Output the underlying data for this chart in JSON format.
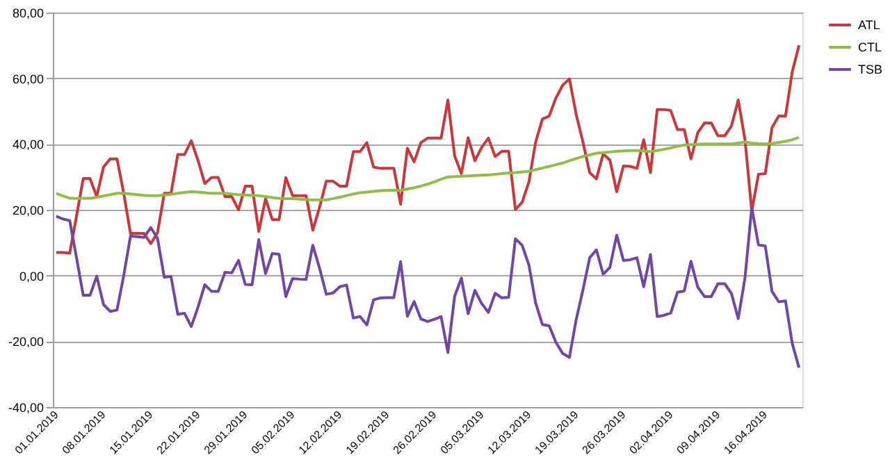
{
  "chart_data": {
    "type": "line",
    "categories": [
      "01.01.2019",
      null,
      null,
      null,
      null,
      null,
      null,
      "08.01.2019",
      null,
      null,
      null,
      null,
      null,
      null,
      "15.01.2019",
      null,
      null,
      null,
      null,
      null,
      null,
      "22.01.2019",
      null,
      null,
      null,
      null,
      null,
      null,
      "29.01.2019",
      null,
      null,
      null,
      null,
      null,
      null,
      "05.02.2019",
      null,
      null,
      null,
      null,
      null,
      null,
      "12.02.2019",
      null,
      null,
      null,
      null,
      null,
      null,
      "19.02.2019",
      null,
      null,
      null,
      null,
      null,
      null,
      "26.02.2019",
      null,
      null,
      null,
      null,
      null,
      null,
      "05.03.2019",
      null,
      null,
      null,
      null,
      null,
      null,
      "12.03.2019",
      null,
      null,
      null,
      null,
      null,
      null,
      "19.03.2019",
      null,
      null,
      null,
      null,
      null,
      null,
      "26.03.2019",
      null,
      null,
      null,
      null,
      null,
      null,
      "02.04.2019",
      null,
      null,
      null,
      null,
      null,
      null,
      "09.04.2019",
      null,
      null,
      null,
      null,
      null,
      null,
      "16.04.2019",
      null,
      null,
      null,
      null,
      null
    ],
    "series": [
      {
        "name": "ATL",
        "color": "#c9393b",
        "values": [
          7,
          7,
          6.8,
          18,
          29.5,
          29.5,
          24,
          33,
          35.5,
          35.5,
          25,
          12.8,
          12.8,
          12.8,
          9.7,
          13,
          25,
          25,
          36.8,
          36.8,
          41,
          35,
          28,
          29.8,
          29.8,
          24,
          24,
          20,
          27.2,
          27.2,
          13.4,
          23.4,
          17,
          17,
          29.8,
          24.3,
          24.3,
          24.3,
          13.8,
          20.8,
          28.7,
          28.7,
          27.2,
          27.2,
          37.7,
          37.7,
          40.4,
          33,
          32.6,
          32.6,
          32.6,
          21.7,
          38.7,
          34.6,
          40.4,
          41.8,
          41.8,
          41.8,
          53.4,
          36.4,
          31,
          41.9,
          34.9,
          39,
          41.8,
          36.2,
          37.8,
          37.8,
          20.1,
          22.3,
          28.5,
          40.6,
          47.6,
          48.5,
          54,
          57.9,
          59.8,
          49,
          40.6,
          31.3,
          29.4,
          37,
          35.1,
          25.5,
          33.3,
          33.2,
          32.6,
          41.3,
          31.3,
          50.5,
          50.5,
          50.2,
          44.4,
          44.4,
          35.5,
          43.4,
          46.4,
          46.4,
          42.5,
          42.5,
          45.5,
          53.4,
          41.3,
          19.6,
          30.8,
          31,
          45,
          48.5,
          48.5,
          62,
          70
        ]
      },
      {
        "name": "CTL",
        "color": "#8dbf44",
        "values": [
          25,
          24.2,
          23.5,
          23.5,
          23.5,
          23.5,
          23.8,
          24.2,
          24.6,
          25,
          25,
          24.8,
          24.6,
          24.4,
          24.3,
          24.3,
          24.5,
          24.7,
          25,
          25.3,
          25.5,
          25.4,
          25.2,
          25,
          25,
          25,
          24.8,
          24.6,
          24.5,
          24.4,
          24.3,
          24,
          23.7,
          23.5,
          23.4,
          23.4,
          23.2,
          23.1,
          23,
          23,
          23,
          23.4,
          23.8,
          24.3,
          24.8,
          25.2,
          25.4,
          25.6,
          25.8,
          25.9,
          25.9,
          25.9,
          26.3,
          26.7,
          27.2,
          27.8,
          28.5,
          29.3,
          30,
          30.1,
          30.2,
          30.3,
          30.4,
          30.5,
          30.6,
          30.8,
          31,
          31.2,
          31.3,
          31.5,
          31.7,
          32.2,
          32.7,
          33.2,
          33.7,
          34.2,
          34.9,
          35.6,
          36.2,
          36.7,
          37.2,
          37.4,
          37.6,
          37.8,
          37.9,
          38,
          38,
          37.9,
          37.7,
          38,
          38.4,
          38.8,
          39.3,
          39.7,
          39.8,
          39.9,
          40,
          40,
          40,
          40,
          40,
          40.3,
          40.6,
          40.3,
          40.1,
          40,
          40.2,
          40.5,
          40.8,
          41.3,
          42
        ]
      },
      {
        "name": "TSB",
        "color": "#7047a6",
        "values": [
          18,
          17.2,
          16.7,
          5.5,
          -6,
          -6,
          -0.2,
          -8.8,
          -10.9,
          -10.5,
          0,
          12,
          11.8,
          11.6,
          14.6,
          11.3,
          -0.5,
          -0.3,
          -11.8,
          -11.5,
          -15.5,
          -9.6,
          -2.8,
          -4.8,
          -4.8,
          1,
          0.8,
          4.6,
          -2.7,
          -2.8,
          10.9,
          0.6,
          6.7,
          6.5,
          -6.4,
          -0.9,
          -1.1,
          -1.2,
          9.2,
          2.2,
          -5.7,
          -5.3,
          -3.4,
          -2.9,
          -12.9,
          -12.5,
          -15,
          -7.4,
          -6.8,
          -6.7,
          -6.7,
          4.2,
          -12.4,
          -7.9,
          -13.2,
          -14,
          -13.3,
          -12.5,
          -23.4,
          -6.3,
          -0.8,
          -11.6,
          -4.5,
          -8.5,
          -11.2,
          -5.4,
          -6.8,
          -6.6,
          11.2,
          9.2,
          3.2,
          -8.4,
          -14.9,
          -15.3,
          -20.3,
          -23.7,
          -24.9,
          -13.4,
          -4.4,
          5.4,
          7.8,
          0.4,
          2.5,
          12.3,
          4.6,
          4.8,
          5.4,
          -3.4,
          6.4,
          -12.5,
          -12.1,
          -11.4,
          -5.1,
          -4.7,
          4.3,
          -3.5,
          -6.4,
          -6.4,
          -2.5,
          -2.5,
          -5.5,
          -13.1,
          -0.7,
          20.7,
          9.3,
          9,
          -4.8,
          -8,
          -7.7,
          -20.7,
          -28
        ]
      }
    ],
    "ylim": [
      -40,
      80
    ],
    "yticks": [
      {
        "value": -40,
        "label": "-40,00"
      },
      {
        "value": -20,
        "label": "-20,00"
      },
      {
        "value": 0,
        "label": "0,00"
      },
      {
        "value": 20,
        "label": "20,00"
      },
      {
        "value": 40,
        "label": "40,00"
      },
      {
        "value": 60,
        "label": "60,00"
      },
      {
        "value": 80,
        "label": "80,00"
      }
    ],
    "grid": "y",
    "legend": "right",
    "marker": "none",
    "line_style": "solid"
  }
}
